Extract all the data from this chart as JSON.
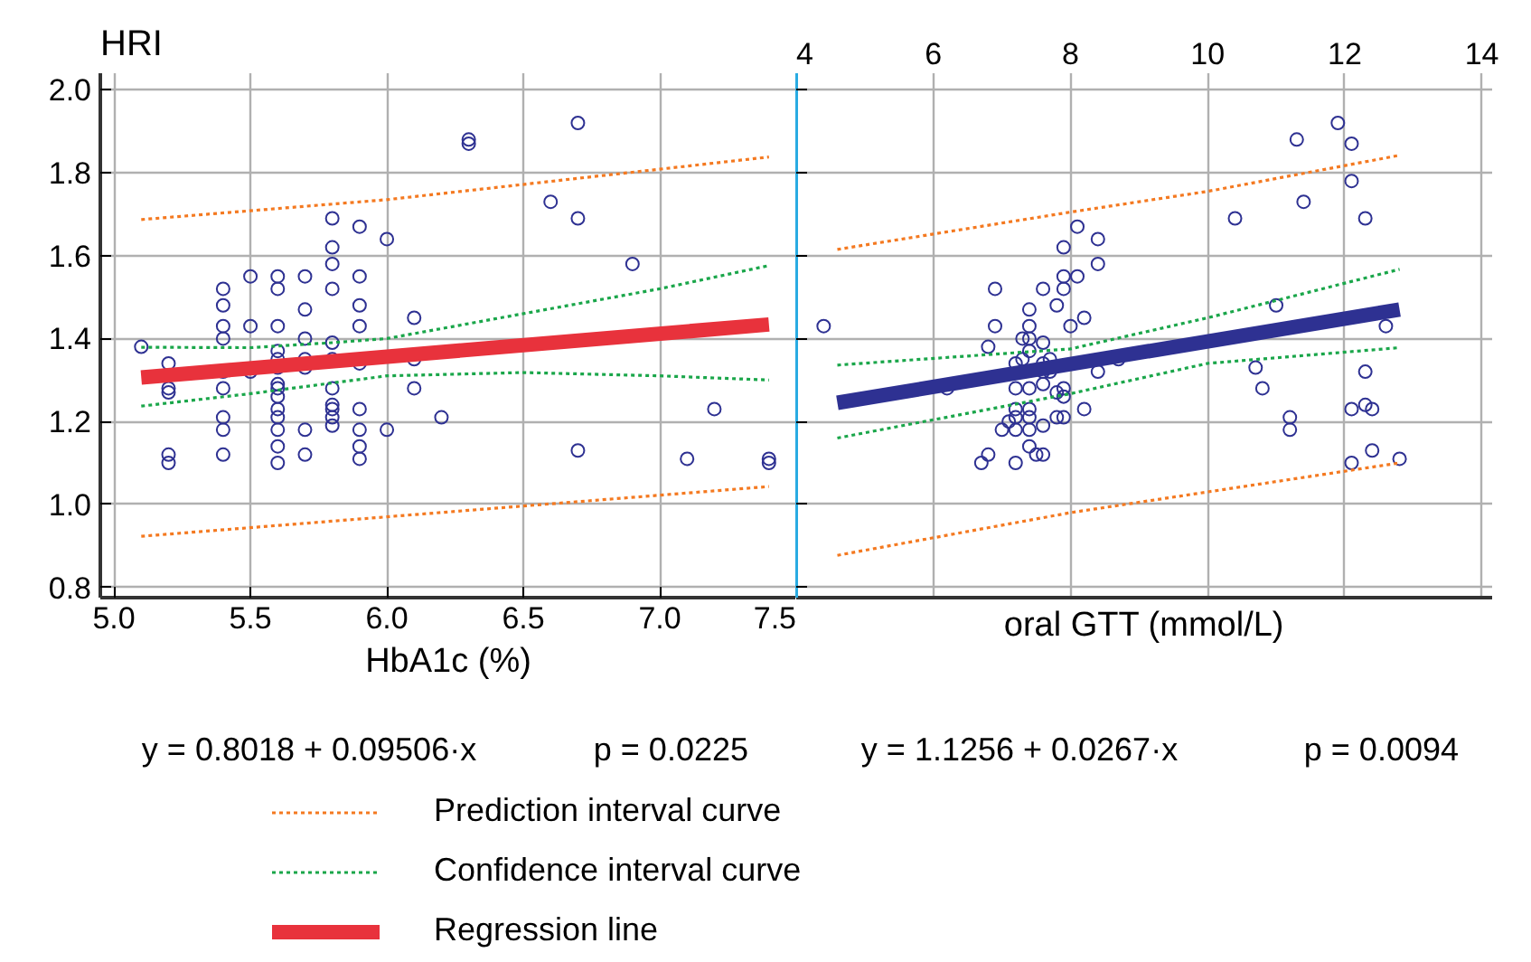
{
  "chart_data": [
    {
      "type": "scatter",
      "ylabel": "HRI",
      "xlabel": "HbA1c (%)",
      "annotations": [
        "y = 0.8018 + 0.09506·x",
        "p = 0.0225"
      ],
      "grid": true,
      "legend": "bottom",
      "xlim": [
        4.95,
        7.5
      ],
      "ylim": [
        0.775,
        2.04
      ],
      "xticks": [
        {
          "value": 5,
          "label": "5.0"
        },
        5.5,
        {
          "value": 6,
          "label": "6.0"
        },
        6.5,
        {
          "value": 7,
          "label": "7.0"
        },
        7.5
      ],
      "yticks": [
        0.8,
        {
          "value": 1,
          "label": "1.0"
        },
        1.2,
        1.4,
        1.6,
        1.8,
        {
          "value": 2,
          "label": "2.0"
        }
      ],
      "series": [
        {
          "marker": "circle",
          "color": "#2e3192",
          "x": [
            5.1,
            6.3,
            6.3,
            6.7,
            6.6,
            6.7,
            6.9,
            5.8,
            5.9,
            6.0,
            5.8,
            5.8,
            5.5,
            5.6,
            5.7,
            5.9,
            5.4,
            5.6,
            5.8,
            5.4,
            5.9,
            5.7,
            6.1,
            5.4,
            5.5,
            5.6,
            5.9,
            5.4,
            5.7,
            5.8,
            5.6,
            5.2,
            5.6,
            5.7,
            5.8,
            5.9,
            6.1,
            5.4,
            5.5,
            5.6,
            5.7,
            5.6,
            5.6,
            5.6,
            5.2,
            5.2,
            5.4,
            5.8,
            6.1,
            5.8,
            5.8,
            5.8,
            5.8,
            5.6,
            5.6,
            5.6,
            5.4,
            5.4,
            5.9,
            5.9,
            5.9,
            5.9,
            6.0,
            6.2,
            5.7,
            5.6,
            5.6,
            5.7,
            5.4,
            5.2,
            5.2,
            6.7,
            7.1,
            7.2,
            7.4,
            7.4
          ],
          "values": [
            1.38,
            1.88,
            1.87,
            1.92,
            1.73,
            1.69,
            1.58,
            1.69,
            1.67,
            1.64,
            1.62,
            1.58,
            1.55,
            1.55,
            1.55,
            1.55,
            1.52,
            1.52,
            1.52,
            1.48,
            1.48,
            1.47,
            1.45,
            1.43,
            1.43,
            1.43,
            1.43,
            1.4,
            1.4,
            1.39,
            1.37,
            1.34,
            1.35,
            1.35,
            1.35,
            1.34,
            1.35,
            1.32,
            1.32,
            1.33,
            1.33,
            1.29,
            1.28,
            1.26,
            1.28,
            1.27,
            1.28,
            1.28,
            1.28,
            1.24,
            1.23,
            1.21,
            1.19,
            1.23,
            1.21,
            1.18,
            1.21,
            1.18,
            1.23,
            1.18,
            1.14,
            1.11,
            1.18,
            1.21,
            1.18,
            1.14,
            1.1,
            1.12,
            1.12,
            1.12,
            1.1,
            1.13,
            1.11,
            1.23,
            1.11,
            1.1
          ]
        },
        {
          "type": "line",
          "name": "Prediction interval curve",
          "color": "#f47920",
          "line_style": "dotted",
          "x": [
            5.1,
            6.0,
            7.4
          ],
          "values": [
            1.687,
            1.735,
            1.838
          ]
        },
        {
          "type": "line",
          "color": "#f47920",
          "line_style": "dotted",
          "x": [
            5.1,
            7.4
          ],
          "values": [
            0.923,
            1.043
          ]
        },
        {
          "type": "line",
          "name": "Confidence interval curve",
          "color": "#1aa64a",
          "line_style": "dotted",
          "x": [
            5.1,
            5.5,
            5.8,
            6.0,
            6.5,
            7.0,
            7.4
          ],
          "values": [
            1.379,
            1.378,
            1.39,
            1.4,
            1.46,
            1.52,
            1.576
          ]
        },
        {
          "type": "line",
          "color": "#1aa64a",
          "line_style": "dotted",
          "x": [
            5.1,
            5.5,
            6.0,
            6.5,
            7.0,
            7.4
          ],
          "values": [
            1.237,
            1.267,
            1.31,
            1.318,
            1.31,
            1.3
          ]
        },
        {
          "type": "line",
          "name": "Regression line",
          "color": "#e8323c",
          "line_style": "solid",
          "x": [
            5.1,
            7.4
          ],
          "values": [
            1.306,
            1.434
          ]
        }
      ]
    },
    {
      "type": "scatter",
      "xlabel": "oral GTT (mmol/L)",
      "annotations": [
        "y = 1.1256 + 0.0267·x",
        "p = 0.0094"
      ],
      "grid": true,
      "tick_labels": "x",
      "xlim": [
        4,
        14.15
      ],
      "ylim": [
        0.775,
        2.04
      ],
      "xticks": [
        4,
        6,
        8,
        10,
        12,
        14
      ],
      "yticks": [
        0.8,
        1,
        1.2,
        1.4,
        1.6,
        1.8,
        2
      ],
      "series": [
        {
          "marker": "circle",
          "color": "#2e3192",
          "x": [
            4.4,
            11.9,
            11.3,
            12.1,
            12.1,
            11.4,
            10.4,
            12.3,
            8.1,
            8.4,
            7.9,
            8.4,
            7.9,
            8.1,
            6.9,
            7.6,
            7.9,
            7.8,
            7.4,
            11.0,
            6.9,
            7.4,
            8.0,
            8.2,
            12.6,
            7.3,
            7.6,
            6.8,
            7.4,
            7.4,
            7.2,
            7.3,
            7.6,
            7.7,
            7.6,
            7.7,
            8.4,
            8.7,
            10.7,
            12.3,
            6.2,
            7.2,
            7.4,
            7.6,
            7.8,
            7.9,
            7.9,
            10.8,
            7.2,
            7.4,
            8.2,
            7.8,
            7.9,
            7.1,
            7.2,
            7.4,
            7.0,
            7.2,
            7.4,
            7.6,
            11.2,
            11.2,
            12.1,
            12.3,
            12.4,
            7.4,
            7.5,
            7.6,
            6.8,
            6.7,
            7.2,
            12.1,
            12.4,
            12.8
          ],
          "values": [
            1.43,
            1.92,
            1.88,
            1.87,
            1.78,
            1.73,
            1.69,
            1.69,
            1.67,
            1.64,
            1.62,
            1.58,
            1.55,
            1.55,
            1.52,
            1.52,
            1.52,
            1.48,
            1.47,
            1.48,
            1.43,
            1.43,
            1.43,
            1.45,
            1.43,
            1.4,
            1.39,
            1.38,
            1.4,
            1.37,
            1.34,
            1.35,
            1.34,
            1.35,
            1.32,
            1.32,
            1.32,
            1.35,
            1.33,
            1.32,
            1.28,
            1.28,
            1.28,
            1.29,
            1.27,
            1.28,
            1.26,
            1.28,
            1.23,
            1.23,
            1.23,
            1.21,
            1.21,
            1.2,
            1.21,
            1.21,
            1.18,
            1.18,
            1.18,
            1.19,
            1.21,
            1.18,
            1.23,
            1.24,
            1.23,
            1.14,
            1.12,
            1.12,
            1.12,
            1.1,
            1.1,
            1.1,
            1.13,
            1.11
          ]
        },
        {
          "type": "line",
          "color": "#f47920",
          "line_style": "dotted",
          "x": [
            4.6,
            8,
            10,
            12.8
          ],
          "values": [
            1.615,
            1.705,
            1.755,
            1.842
          ]
        },
        {
          "type": "line",
          "color": "#f47920",
          "line_style": "dotted",
          "x": [
            4.6,
            8,
            10,
            12.8
          ],
          "values": [
            0.877,
            0.98,
            1.03,
            1.1
          ]
        },
        {
          "type": "line",
          "color": "#1aa64a",
          "line_style": "dotted",
          "x": [
            4.6,
            8,
            10,
            12.8
          ],
          "values": [
            1.336,
            1.375,
            1.45,
            1.567
          ]
        },
        {
          "type": "line",
          "color": "#1aa64a",
          "line_style": "dotted",
          "x": [
            4.6,
            8,
            10,
            12.8
          ],
          "values": [
            1.16,
            1.267,
            1.34,
            1.378
          ]
        },
        {
          "type": "line",
          "color": "#2e3192",
          "line_style": "solid",
          "x": [
            4.6,
            12.8
          ],
          "values": [
            1.245,
            1.47
          ]
        }
      ]
    }
  ]
}
